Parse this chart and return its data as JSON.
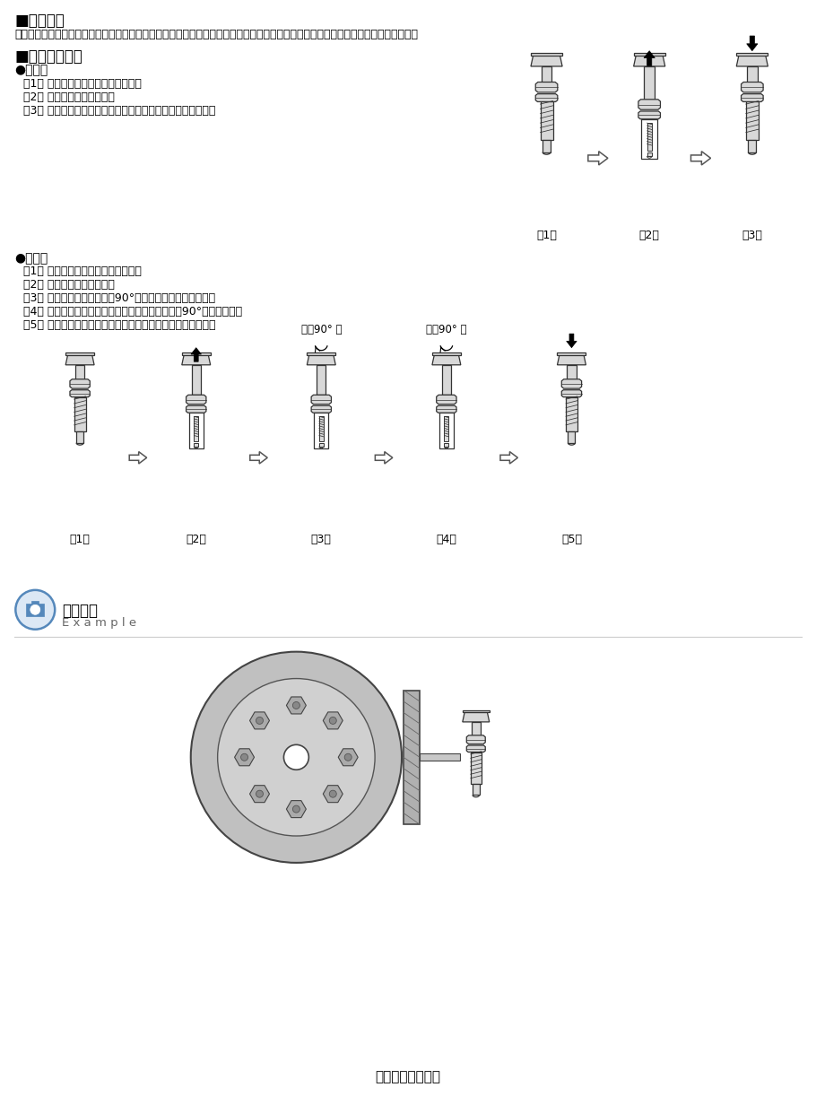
{
  "section1_title": "■柱塞概述",
  "section1_body": "旋鈕柱塞由销体，销头，把手，内置弹簧组成。是一种可手动操作销的进出的定位销。适用于夹具的分度、定位、停止限位等各种场合。",
  "section2_title": "■柱塞操作方法",
  "subsection1": "●复位型",
  "subsection1_steps": [
    "（1） 初始状态下销头处于突出位置。",
    "（2） 拉出旋鈕时销头缩回。",
    "（3） 释放旋鈕后，销头因内置弹簧力的作用下恢复突出位置。"
  ],
  "subsection2": "●自锁型",
  "subsection2_steps": [
    "（1） 初始状态下销头处于突出位置。",
    "（2） 拉出旋鈕时销头缩回。",
    "（3） 在拉出状态下旋转旋鈕90°，可锁定销头的缩回状态。",
    "（4） 在锁定状态下，如需解除锁定，再次旋转旋鈕90°，即可解除。",
    "（5） 释放旋鈕后，销头因内置弹簧力的作用下恢复突出位置。"
  ],
  "rotate_label": "旋转90° 后",
  "example_label": "使用范例",
  "example_english": "E x a m p l e",
  "bottom_label": "用于分度盘的分度",
  "bg_color": "#ffffff",
  "part_color": "#d8d8d8",
  "part_edge": "#333333"
}
